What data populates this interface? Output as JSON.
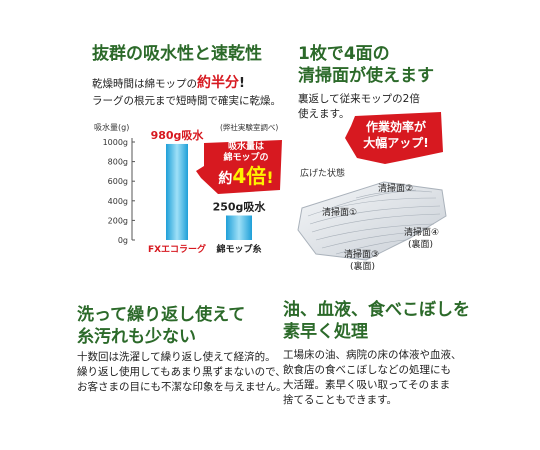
{
  "sec1": {
    "title": "抜群の吸水性と速乾性",
    "line1_pre": "乾燥時間は綿モップの",
    "line1_em": "約半分",
    "line1_post": "!",
    "line2": "ラーグの根元まで短時間で確実に乾燥。"
  },
  "chart_data": {
    "type": "bar",
    "ylabel": "吸水量(g)",
    "note": "(弊社実験室調べ)",
    "yticks": [
      "1000g",
      "800g",
      "600g",
      "400g",
      "200g",
      "0g"
    ],
    "ylim": [
      0,
      1000
    ],
    "categories": [
      "FXエコラーグ",
      "綿モップ糸"
    ],
    "values": [
      980,
      250
    ],
    "data_labels": [
      "980g吸水",
      "250g吸水"
    ],
    "colors": {
      "fx": "#d71920",
      "cotton": "#222222",
      "bar": "#2fb0e6"
    }
  },
  "burst1": {
    "line1": "吸水量は",
    "line2": "綿モップの",
    "line3_pre": "約",
    "line3_big": "4倍",
    "line3_post": "!"
  },
  "sec2": {
    "title_line1": "1枚で4面の",
    "title_line2": "清掃面が使えます",
    "line1": "裏返して従来モップの2倍",
    "line2": "使えます。"
  },
  "burst2": {
    "line1": "作業効率が",
    "line2": "大幅アップ!"
  },
  "mop": {
    "caption": "広げた状態",
    "labels": [
      "清掃面①",
      "清掃面②",
      "清掃面③",
      "(裏面)",
      "清掃面④",
      "(裏面)"
    ]
  },
  "sec3": {
    "title_line1": "洗って繰り返し使えて",
    "title_line2": "糸汚れも少ない",
    "lines": [
      "十数回は洗濯して繰り返し使えて経済的。",
      "繰り返し使用してもあまり黒ずまないので、",
      "お客さまの目にも不潔な印象を与えません。"
    ]
  },
  "sec4": {
    "title_line1": "油、血液、食べこぼしを",
    "title_line2": "素早く処理",
    "lines": [
      "工場床の油、病院の床の体液や血液、",
      "飲食店の食べこぼしなどの処理にも",
      "大活躍。素早く吸い取ってそのまま",
      "捨てることもできます。"
    ]
  }
}
